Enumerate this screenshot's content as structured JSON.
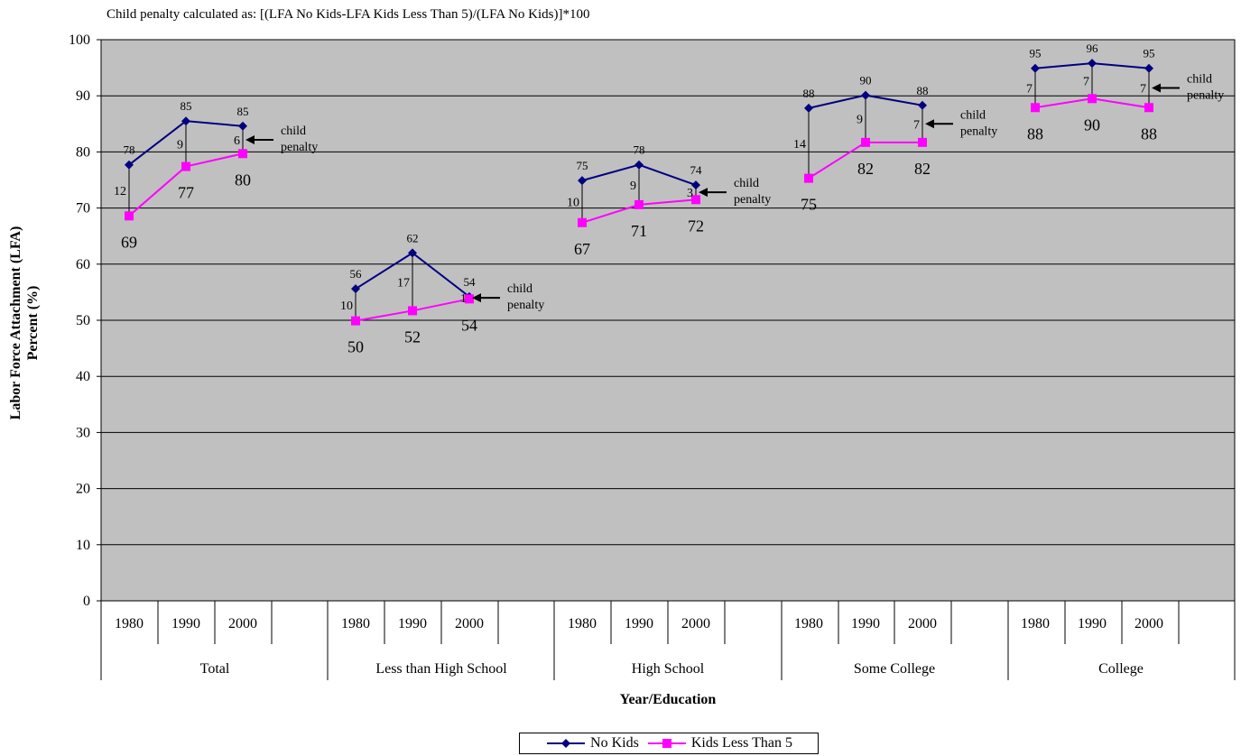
{
  "chart_data": {
    "type": "line",
    "title": "Child penalty calculated as: [(LFA No Kids-LFA Kids Less Than 5)/(LFA No Kids)]*100",
    "xlabel": "Year/Education",
    "ylabel": [
      "Labor Force Attachment (LFA)",
      "Percent (%)"
    ],
    "ylim": [
      0,
      100
    ],
    "yticks": [
      0,
      10,
      20,
      30,
      40,
      50,
      60,
      70,
      80,
      90,
      100
    ],
    "grid": true,
    "legend_position": "bottom",
    "groups": [
      "Total",
      "Less than High School",
      "High School",
      "Some College",
      "College"
    ],
    "years": [
      "1980",
      "1990",
      "2000"
    ],
    "series": [
      {
        "name": "No Kids",
        "color": "#000080",
        "marker": "diamond",
        "values": [
          [
            77.7,
            85.5,
            84.6
          ],
          [
            55.6,
            62.0,
            54.2
          ],
          [
            74.9,
            77.7,
            74.1
          ],
          [
            87.8,
            90.1,
            88.3
          ],
          [
            94.9,
            95.8,
            94.9
          ]
        ],
        "labels": [
          [
            "78",
            "85",
            "85"
          ],
          [
            "56",
            "62",
            "54"
          ],
          [
            "75",
            "78",
            "74"
          ],
          [
            "88",
            "90",
            "88"
          ],
          [
            "95",
            "96",
            "95"
          ]
        ]
      },
      {
        "name": "Kids Less Than 5",
        "color": "#ff00ff",
        "marker": "square",
        "values": [
          [
            68.6,
            77.4,
            79.7
          ],
          [
            49.9,
            51.7,
            53.8
          ],
          [
            67.4,
            70.6,
            71.5
          ],
          [
            75.3,
            81.7,
            81.7
          ],
          [
            87.9,
            89.5,
            87.9
          ]
        ],
        "labels": [
          [
            "69",
            "77",
            "80"
          ],
          [
            "50",
            "52",
            "54"
          ],
          [
            "67",
            "71",
            "72"
          ],
          [
            "75",
            "82",
            "82"
          ],
          [
            "88",
            "90",
            "88"
          ]
        ]
      }
    ],
    "child_penalty": [
      [
        "12",
        "9",
        "6"
      ],
      [
        "10",
        "17",
        "1"
      ],
      [
        "10",
        "9",
        "3"
      ],
      [
        "14",
        "9",
        "7"
      ],
      [
        "7",
        "7",
        "7"
      ]
    ],
    "annotation_text": [
      "child",
      "penalty"
    ]
  }
}
